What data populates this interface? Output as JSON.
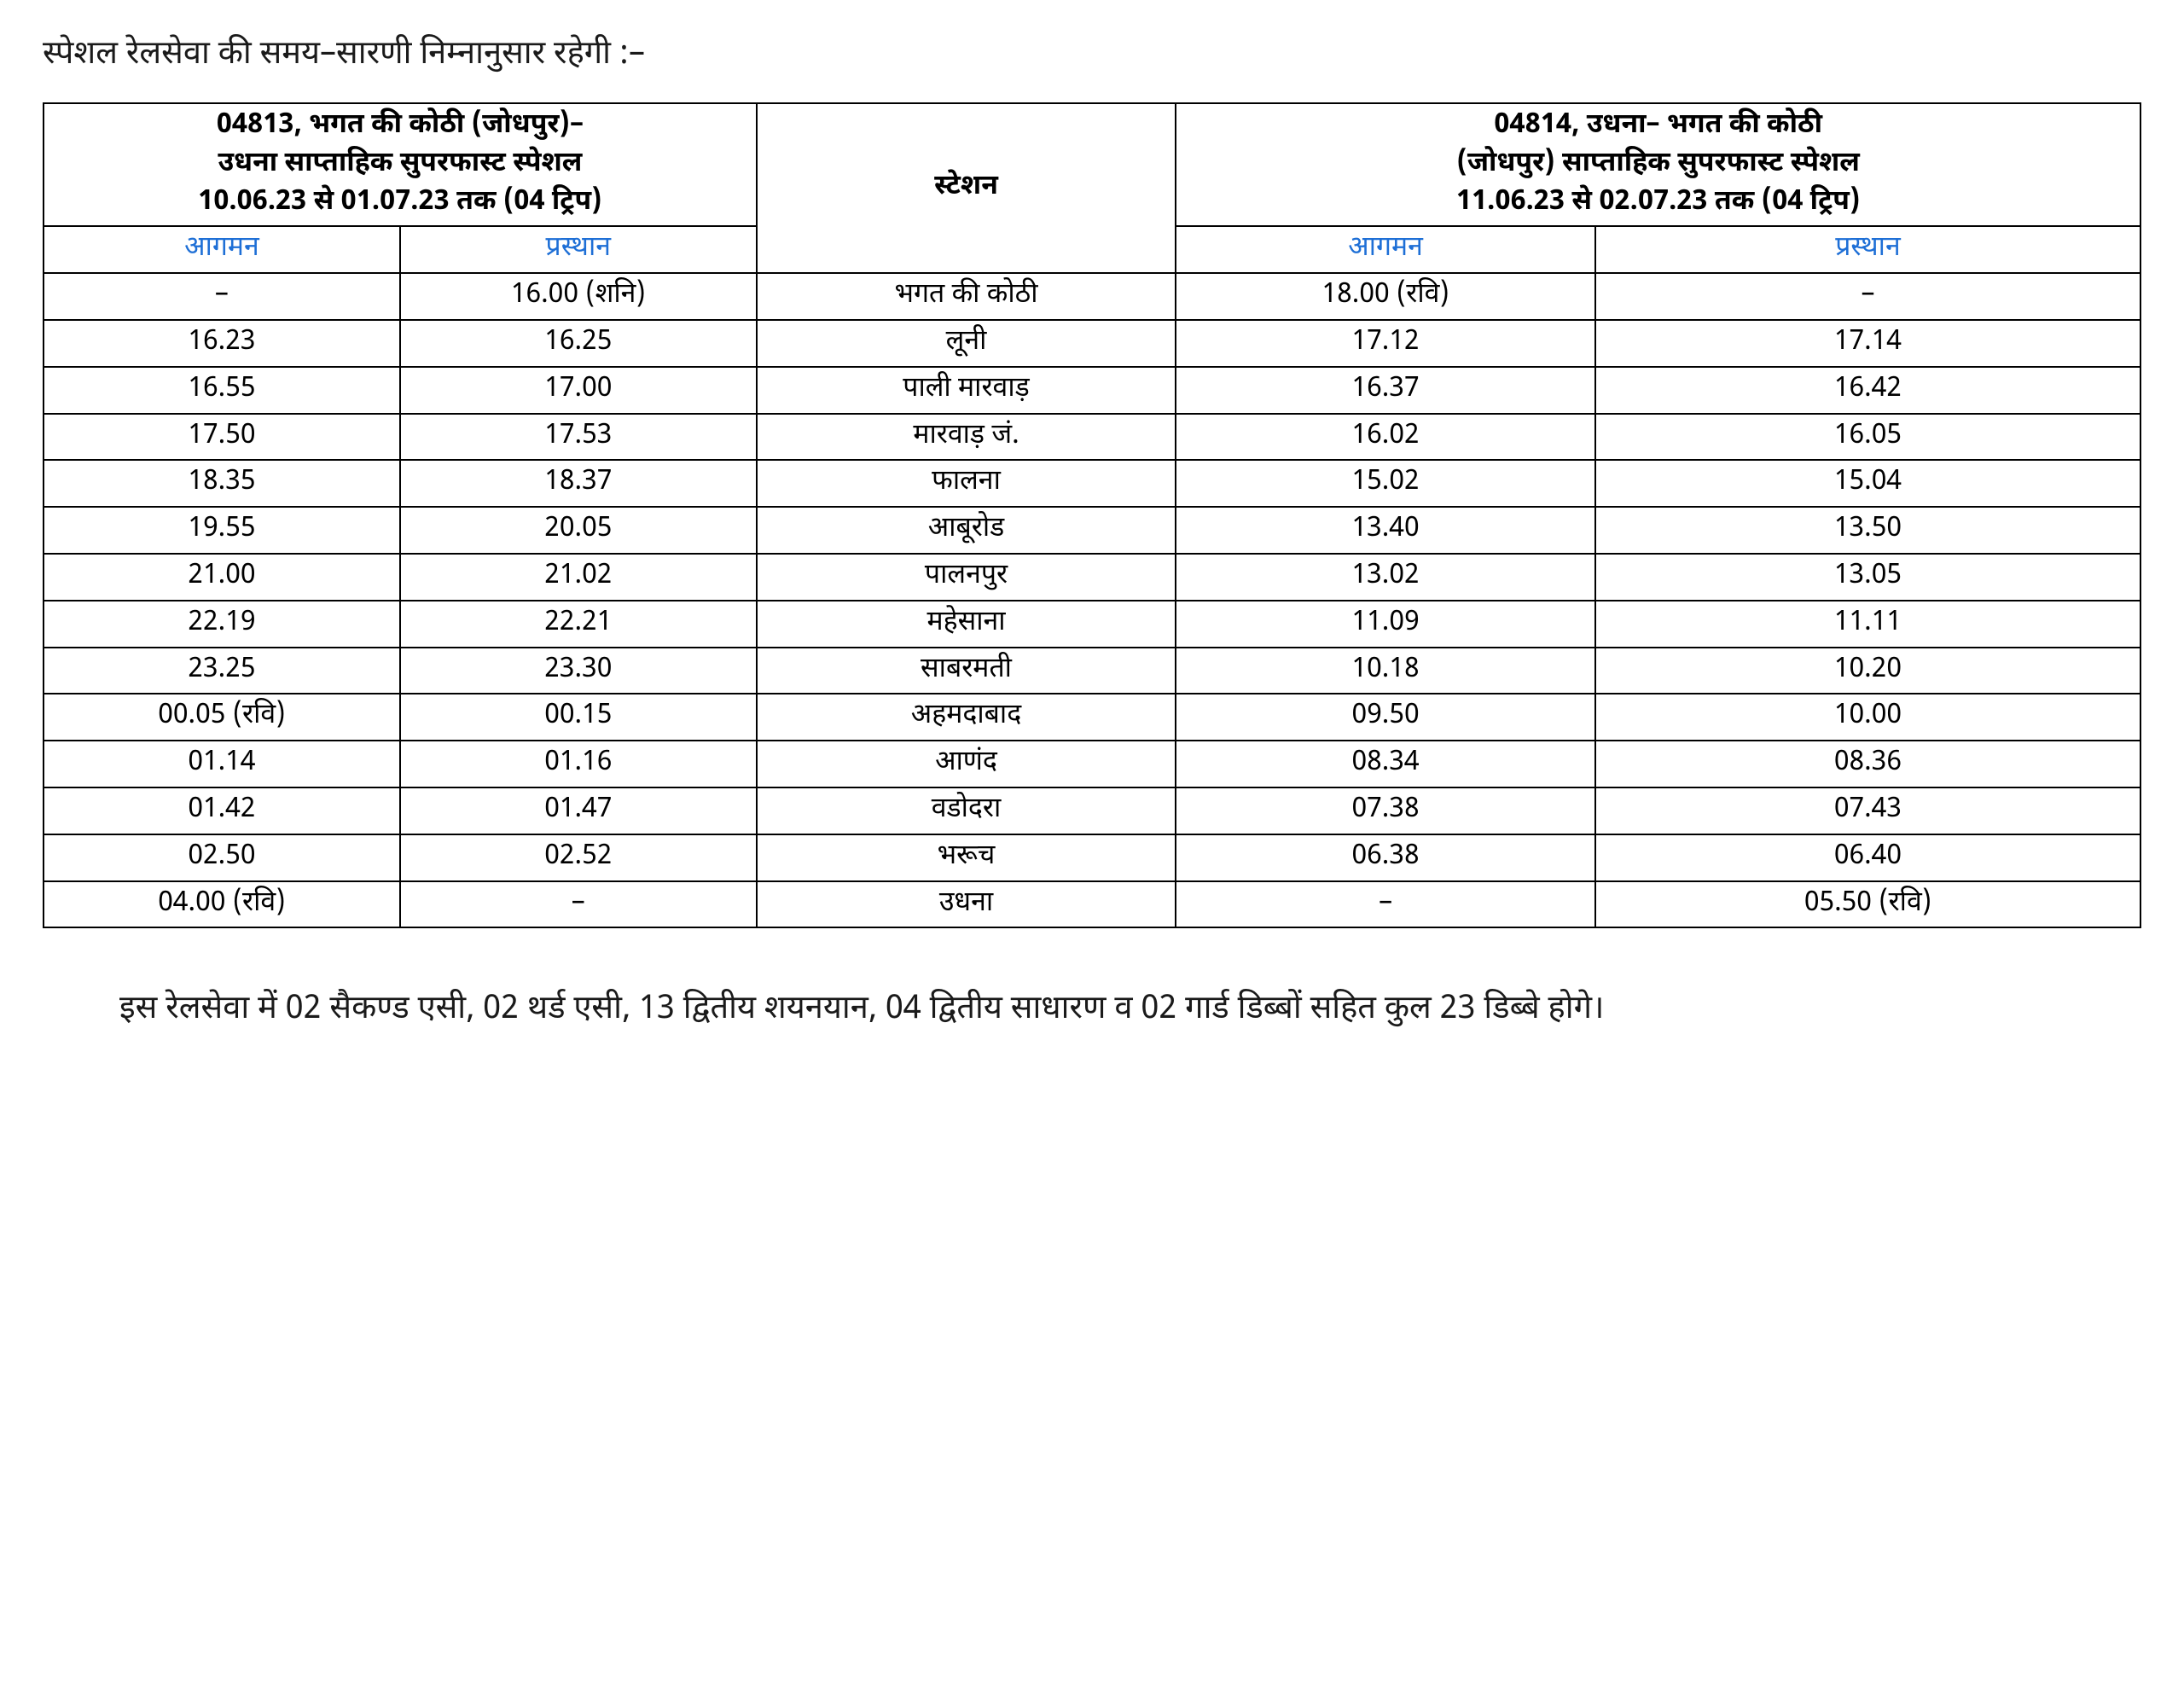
{
  "title": "स्पेशल रेलसेवा की समय–सारणी निम्नानुसार रहेगी :–",
  "columns": {
    "train1_header_line1": "04813, भगत की कोठी (जोधपुर)–",
    "train1_header_line2": "उधना साप्ताहिक सुपरफास्ट स्पेशल",
    "train1_header_line3": "10.06.23 से 01.07.23 तक (04 ट्रिप)",
    "station_label": "स्टेशन",
    "train2_header_line1": "04814, उधना– भगत की कोठी",
    "train2_header_line2": "(जोधपुर) साप्ताहिक सुपरफास्ट स्पेशल",
    "train2_header_line3": "11.06.23 से 02.07.23 तक (04 ट्रिप)",
    "arrival_label": "आगमन",
    "departure_label": "प्रस्थान"
  },
  "rows": [
    {
      "arr1": "–",
      "dep1": "16.00  (शनि)",
      "station": "भगत की कोठी",
      "arr2": "18.00  (रवि)",
      "dep2": "–"
    },
    {
      "arr1": "16.23",
      "dep1": "16.25",
      "station": "लूनी",
      "arr2": "17.12",
      "dep2": "17.14"
    },
    {
      "arr1": "16.55",
      "dep1": "17.00",
      "station": "पाली मारवाड़",
      "arr2": "16.37",
      "dep2": "16.42"
    },
    {
      "arr1": "17.50",
      "dep1": "17.53",
      "station": "मारवाड़ जं.",
      "arr2": "16.02",
      "dep2": "16.05"
    },
    {
      "arr1": "18.35",
      "dep1": "18.37",
      "station": "फालना",
      "arr2": "15.02",
      "dep2": "15.04"
    },
    {
      "arr1": "19.55",
      "dep1": "20.05",
      "station": "आबूरोड",
      "arr2": "13.40",
      "dep2": "13.50"
    },
    {
      "arr1": "21.00",
      "dep1": "21.02",
      "station": "पालनपुर",
      "arr2": "13.02",
      "dep2": "13.05"
    },
    {
      "arr1": "22.19",
      "dep1": "22.21",
      "station": "महेसाना",
      "arr2": "11.09",
      "dep2": "11.11"
    },
    {
      "arr1": "23.25",
      "dep1": "23.30",
      "station": "साबरमती",
      "arr2": "10.18",
      "dep2": "10.20"
    },
    {
      "arr1": "00.05  (रवि)",
      "dep1": "00.15",
      "station": "अहमदाबाद",
      "arr2": "09.50",
      "dep2": "10.00"
    },
    {
      "arr1": "01.14",
      "dep1": "01.16",
      "station": "आणंद",
      "arr2": "08.34",
      "dep2": "08.36"
    },
    {
      "arr1": "01.42",
      "dep1": "01.47",
      "station": "वडोदरा",
      "arr2": "07.38",
      "dep2": "07.43"
    },
    {
      "arr1": "02.50",
      "dep1": "02.52",
      "station": "भरूच",
      "arr2": "06.38",
      "dep2": "06.40"
    },
    {
      "arr1": "04.00  (रवि)",
      "dep1": "–",
      "station": "उधना",
      "arr2": "–",
      "dep2": "05.50  (रवि)"
    }
  ],
  "footer": "इस रेलसेवा में 02 सैकण्ड एसी, 02 थर्ड एसी, 13 द्वितीय शयनयान, 04 द्वितीय साधारण व 02 गार्ड डिब्बों सहित कुल 23 डिब्बे होगे।",
  "style": {
    "text_color": "#000000",
    "subheader_color": "#1e6fd6",
    "border_color": "#000000",
    "background": "#ffffff",
    "col_widths_pct": [
      17,
      17,
      20,
      20,
      26
    ]
  }
}
